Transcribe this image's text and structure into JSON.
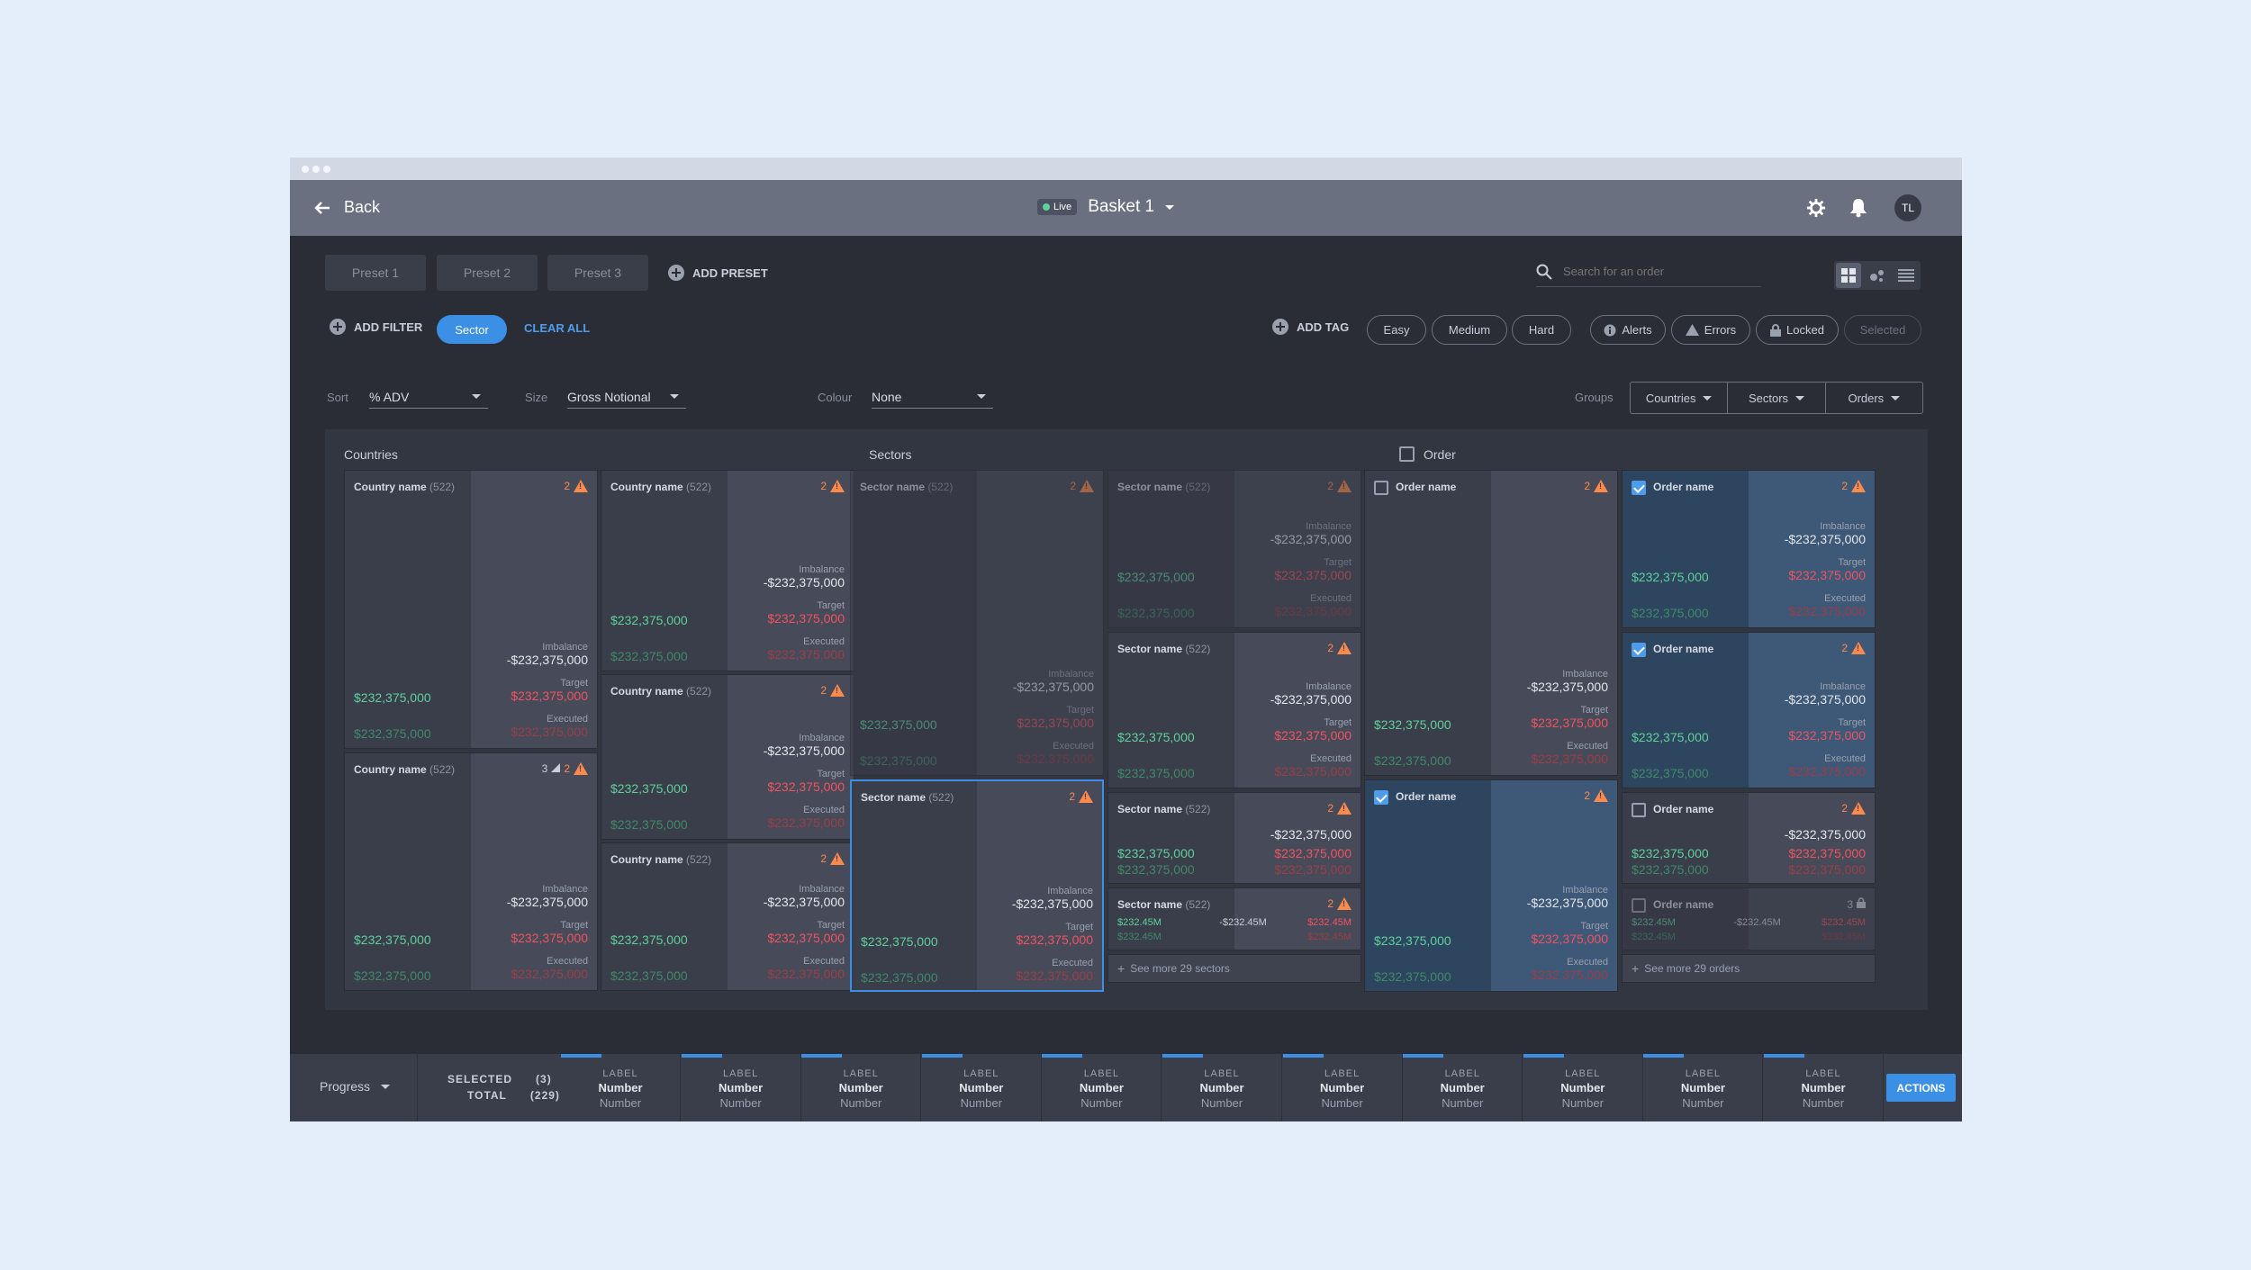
{
  "window": {
    "back_label": "Back",
    "live_label": "Live",
    "basket_title": "Basket 1",
    "avatar_initials": "TL"
  },
  "presets": [
    "Preset 1",
    "Preset 2",
    "Preset 3"
  ],
  "add_preset_label": "ADD PRESET",
  "search": {
    "placeholder": "Search for an order"
  },
  "filters": {
    "add_filter_label": "ADD FILTER",
    "active_chip": "Sector",
    "clear_all_label": "CLEAR ALL",
    "add_tag_label": "ADD TAG",
    "difficulty": [
      "Easy",
      "Medium",
      "Hard"
    ],
    "status": [
      "Alerts",
      "Errors",
      "Locked",
      "Selected"
    ]
  },
  "controls": {
    "sort_label": "Sort",
    "sort_value": "% ADV",
    "size_label": "Size",
    "size_value": "Gross Notional",
    "colour_label": "Colour",
    "colour_value": "None",
    "groups_label": "Groups",
    "groups": [
      "Countries",
      "Sectors",
      "Orders"
    ]
  },
  "columns": {
    "countries_title": "Countries",
    "sectors_title": "Sectors",
    "order_title": "Order"
  },
  "labels": {
    "imbalance": "Imbalance",
    "target": "Target",
    "executed": "Executed",
    "value": "$232,375,000",
    "neg_value": "-$232,375,000",
    "short_value": "$232.45M",
    "short_neg": "-$232.45M",
    "country_name": "Country name",
    "sector_name": "Sector name",
    "order_name": "Order name",
    "count": "(522)",
    "alert_2": "2",
    "alert_3": "3",
    "see_more_sectors": "See more 29 sectors",
    "see_more_orders": "See more 29 orders"
  },
  "bottom": {
    "progress_label": "Progress",
    "selected_label": "SELECTED",
    "selected_count": "(3)",
    "total_label": "TOTAL",
    "total_count": "(229)",
    "step_label": "LABEL",
    "step_number": "Number",
    "step_sub": "Number",
    "actions_label": "ACTIONS"
  },
  "colors": {
    "accent": "#3b8fe4",
    "positive": "#5fd19a",
    "negative": "#f0535f",
    "warning": "#ff8a4c"
  },
  "icons": [
    "back-arrow-icon",
    "caret-down-icon",
    "gear-icon",
    "bell-icon",
    "plus-circle-icon",
    "search-icon",
    "grid-view-icon",
    "bubble-view-icon",
    "list-view-icon",
    "info-icon",
    "warning-icon",
    "lock-icon",
    "check-icon"
  ]
}
